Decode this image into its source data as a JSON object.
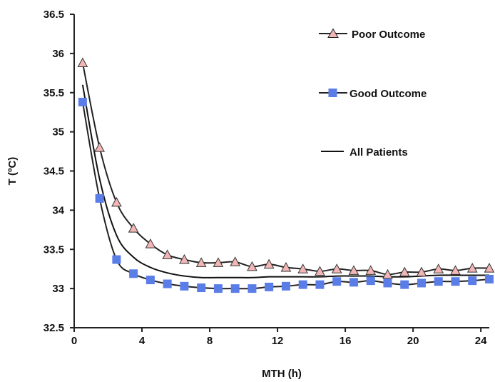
{
  "chart_data": {
    "type": "line",
    "title": "",
    "xlabel": "MTH (h)",
    "ylabel": "T (ºC)",
    "xlim": [
      0,
      24.5
    ],
    "ylim": [
      32.5,
      36.5
    ],
    "xticks": [
      "0",
      "4",
      "8",
      "12",
      "16",
      "20",
      "24"
    ],
    "yticks": [
      "32.5",
      "33",
      "33.5",
      "34",
      "34.5",
      "35",
      "35.5",
      "36",
      "36.5"
    ],
    "grid": false,
    "legend_position": "top-right",
    "series": [
      {
        "name": "Poor Outcome",
        "marker": "triangle",
        "marker_fill": "#f2b6b6",
        "line_color": "#222222",
        "x": [
          0.5,
          1.5,
          2.5,
          3.5,
          4.5,
          5.5,
          6.5,
          7.5,
          8.5,
          9.5,
          10.5,
          11.5,
          12.5,
          13.5,
          14.5,
          15.5,
          16.5,
          17.5,
          18.5,
          19.5,
          20.5,
          21.5,
          22.5,
          23.5,
          24.5
        ],
        "y": [
          35.88,
          34.8,
          34.1,
          33.77,
          33.57,
          33.43,
          33.37,
          33.33,
          33.33,
          33.34,
          33.28,
          33.31,
          33.27,
          33.25,
          33.22,
          33.25,
          33.23,
          33.23,
          33.18,
          33.21,
          33.21,
          33.25,
          33.23,
          33.26,
          33.26
        ]
      },
      {
        "name": "Good Outcome",
        "marker": "square",
        "marker_fill": "#5b7de8",
        "line_color": "#222222",
        "x": [
          0.5,
          1.5,
          2.5,
          3.5,
          4.5,
          5.5,
          6.5,
          7.5,
          8.5,
          9.5,
          10.5,
          11.5,
          12.5,
          13.5,
          14.5,
          15.5,
          16.5,
          17.5,
          18.5,
          19.5,
          20.5,
          21.5,
          22.5,
          23.5,
          24.5
        ],
        "y": [
          35.38,
          34.15,
          33.37,
          33.19,
          33.11,
          33.06,
          33.03,
          33.01,
          33.0,
          33.0,
          33.0,
          33.02,
          33.03,
          33.05,
          33.05,
          33.09,
          33.08,
          33.1,
          33.07,
          33.05,
          33.07,
          33.09,
          33.09,
          33.1,
          33.12
        ]
      },
      {
        "name": "All Patients",
        "marker": "none",
        "line_color": "#111111",
        "x": [
          0.5,
          1.5,
          2.5,
          3.5,
          4.5,
          5.5,
          6.5,
          7.5,
          8.5,
          9.5,
          10.5,
          11.5,
          12.5,
          13.5,
          14.5,
          15.5,
          16.5,
          17.5,
          18.5,
          19.5,
          20.5,
          21.5,
          22.5,
          23.5,
          24.5
        ],
        "y": [
          35.6,
          34.4,
          33.68,
          33.4,
          33.27,
          33.2,
          33.16,
          33.14,
          33.14,
          33.14,
          33.14,
          33.15,
          33.15,
          33.15,
          33.15,
          33.16,
          33.16,
          33.16,
          33.15,
          33.15,
          33.16,
          33.17,
          33.17,
          33.17,
          33.17
        ]
      }
    ]
  }
}
